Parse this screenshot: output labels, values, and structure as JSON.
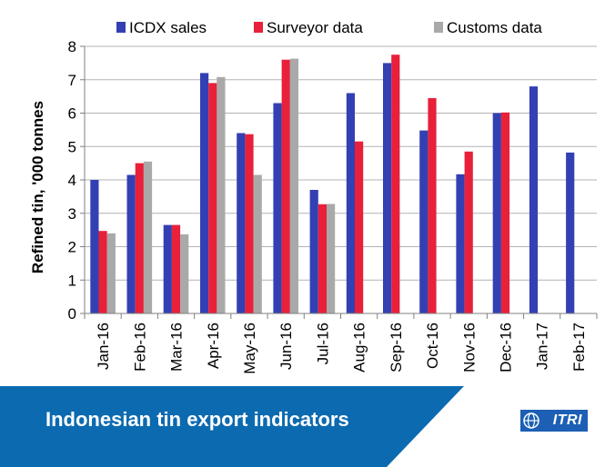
{
  "chart_data": {
    "type": "bar",
    "title": "",
    "xlabel": "",
    "ylabel": "Refined tin, '000 tonnes",
    "ylim": [
      0,
      8
    ],
    "yticks": [
      "0",
      "1",
      "2",
      "3",
      "4",
      "5",
      "6",
      "7",
      "8"
    ],
    "grid": true,
    "legend_position": "top",
    "categories": [
      "Jan-16",
      "Feb-16",
      "Mar-16",
      "Apr-16",
      "May-16",
      "Jun-16",
      "Jul-16",
      "Aug-16",
      "Sep-16",
      "Oct-16",
      "Nov-16",
      "Dec-16",
      "Jan-17",
      "Feb-17"
    ],
    "series": [
      {
        "name": "ICDX sales",
        "color": "#3340b3",
        "values": [
          4.0,
          4.15,
          2.65,
          7.2,
          5.4,
          6.3,
          3.7,
          6.6,
          7.5,
          5.48,
          4.17,
          6.0,
          6.8,
          4.82
        ]
      },
      {
        "name": "Surveyor data",
        "color": "#e8203a",
        "values": [
          2.47,
          4.5,
          2.65,
          6.9,
          5.37,
          7.6,
          3.27,
          5.15,
          7.75,
          6.45,
          4.85,
          6.02,
          null,
          null
        ]
      },
      {
        "name": "Customs data",
        "color": "#a9a9a9",
        "values": [
          2.4,
          4.55,
          2.37,
          7.08,
          4.15,
          7.63,
          3.28,
          null,
          null,
          null,
          null,
          null,
          null,
          null
        ]
      }
    ]
  },
  "banner": {
    "title": "Indonesian tin export indicators",
    "logo_text": "ITRI",
    "color": "#0c6ab0"
  }
}
